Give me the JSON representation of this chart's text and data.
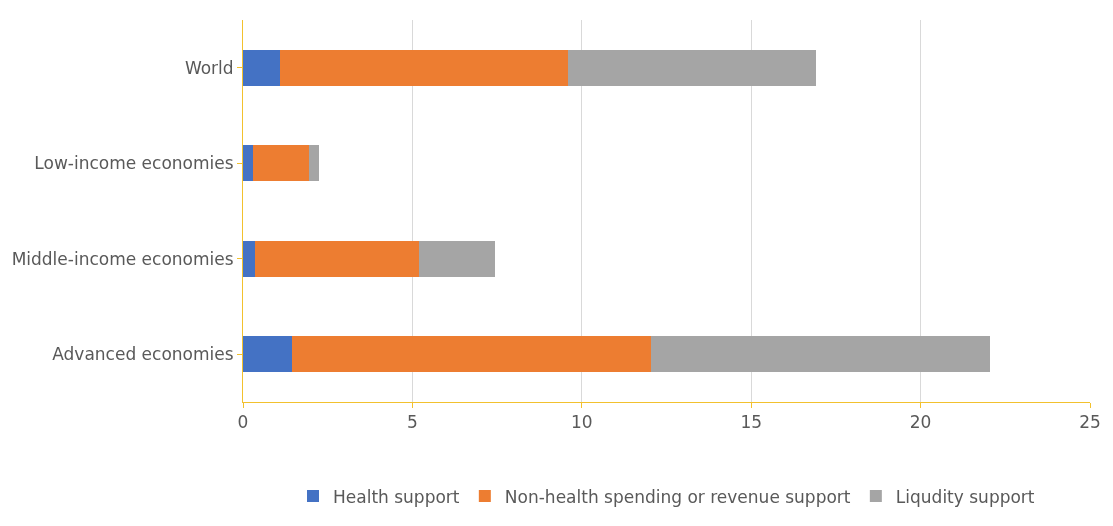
{
  "chart_data": {
    "type": "bar",
    "orientation": "horizontal",
    "stacked": true,
    "categories": [
      "World",
      "Low-income economies",
      "Middle-income economies",
      "Advanced economies"
    ],
    "series": [
      {
        "name": "Health support",
        "color": "#4472c4",
        "values": [
          1.1,
          0.3,
          0.35,
          1.45
        ]
      },
      {
        "name": "Non-health spending or revenue support",
        "color": "#ed7d31",
        "values": [
          8.5,
          1.65,
          4.85,
          10.6
        ]
      },
      {
        "name": "Liqudity support",
        "color": "#a5a5a5",
        "values": [
          7.3,
          0.3,
          2.25,
          10.0
        ]
      }
    ],
    "xlim": [
      0,
      25
    ],
    "xticks": [
      0,
      5,
      10,
      15,
      20,
      25
    ],
    "grid": "x",
    "legend": "bottom"
  }
}
